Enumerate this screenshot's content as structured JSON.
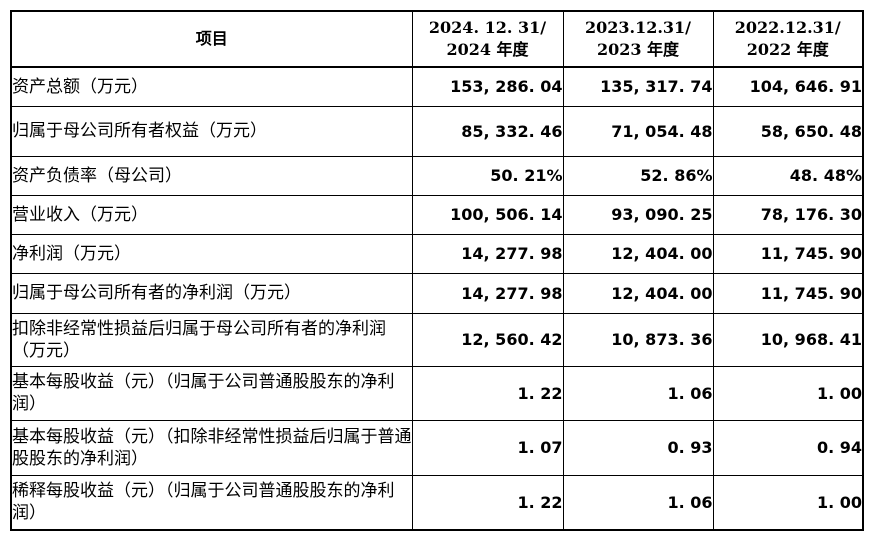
{
  "header": {
    "item": "项目",
    "col1_line1": "2024. 12. 31/",
    "col1_line2": "2024 年度",
    "col2_line1": "2023.12.31/",
    "col2_line2": "2023 年度",
    "col3_line1": "2022.12.31/",
    "col3_line2": "2022 年度"
  },
  "rows": [
    {
      "label": "资产总额（万元）",
      "v2024": "153, 286. 04",
      "v2023": "135, 317. 74",
      "v2022": "104, 646. 91"
    },
    {
      "label": "归属于母公司所有者权益（万元）",
      "v2024": "85, 332. 46",
      "v2023": "71, 054. 48",
      "v2022": "58, 650. 48"
    },
    {
      "label": "资产负债率（母公司）",
      "v2024": "50. 21%",
      "v2023": "52. 86%",
      "v2022": "48. 48%"
    },
    {
      "label": "营业收入（万元）",
      "v2024": "100, 506. 14",
      "v2023": "93, 090. 25",
      "v2022": "78, 176. 30"
    },
    {
      "label": "净利润（万元）",
      "v2024": "14, 277. 98",
      "v2023": "12, 404. 00",
      "v2022": "11, 745. 90"
    },
    {
      "label": "归属于母公司所有者的净利润（万元）",
      "v2024": "14, 277. 98",
      "v2023": "12, 404. 00",
      "v2022": "11, 745. 90"
    },
    {
      "label": "扣除非经常性损益后归属于母公司所有者的净利润（万元）",
      "v2024": "12, 560. 42",
      "v2023": "10, 873. 36",
      "v2022": "10, 968. 41"
    },
    {
      "label": "基本每股收益（元）（归属于公司普通股股东的净利润）",
      "v2024": "1. 22",
      "v2023": "1. 06",
      "v2022": "1. 00"
    },
    {
      "label": "基本每股收益（元）（扣除非经常性损益后归属于普通股股东的净利润）",
      "v2024": "1. 07",
      "v2023": "0. 93",
      "v2022": "0. 94"
    },
    {
      "label": "稀释每股收益（元）（归属于公司普通股股东的净利润）",
      "v2024": "1. 22",
      "v2023": "1. 06",
      "v2022": "1. 00"
    }
  ]
}
